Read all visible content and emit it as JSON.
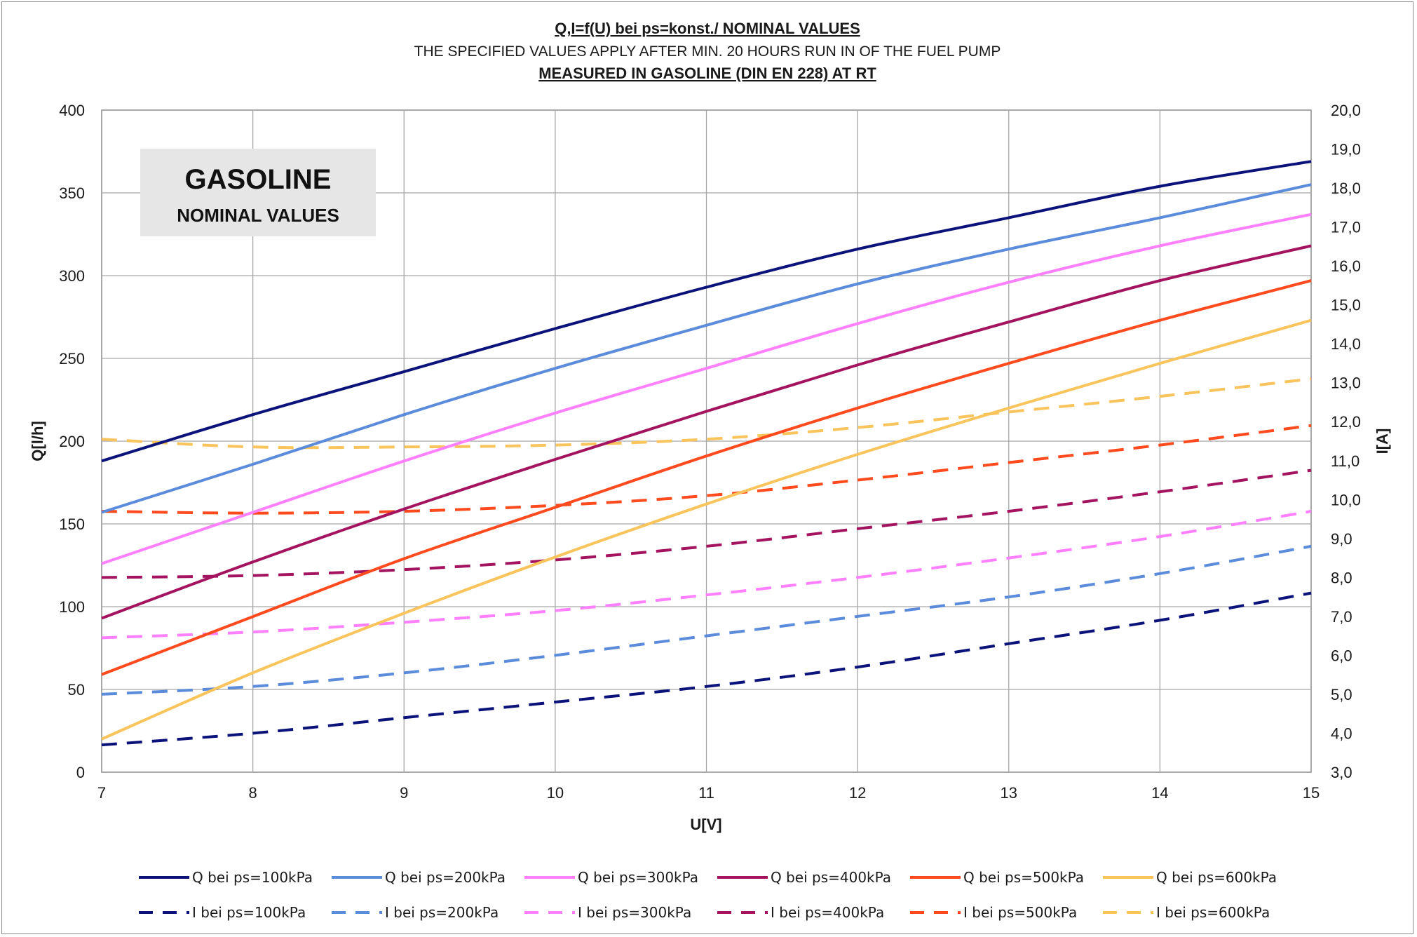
{
  "chart_data": {
    "type": "line",
    "title": "Q,I=f(U) bei ps=konst./  NOMINAL VALUES",
    "subtitle": "THE SPECIFIED VALUES APPLY AFTER MIN. 20 HOURS RUN IN OF THE FUEL PUMP",
    "subtitle2": "MEASURED IN GASOLINE (DIN EN 228) AT RT",
    "badge": {
      "line1": "GASOLINE",
      "line2": "NOMINAL VALUES"
    },
    "xlabel": "U[V]",
    "ylabel": "Q[l/h]",
    "y2label": "I[A]",
    "xlim": [
      7,
      15
    ],
    "ylim": [
      0,
      400
    ],
    "y2lim": [
      3,
      20
    ],
    "x_ticks": [
      "7",
      "8",
      "9",
      "10",
      "11",
      "12",
      "13",
      "14",
      "15"
    ],
    "y_ticks": [
      "0",
      "50",
      "100",
      "150",
      "200",
      "250",
      "300",
      "350",
      "400"
    ],
    "y2_ticks": [
      "3,0",
      "4,0",
      "5,0",
      "6,0",
      "7,0",
      "8,0",
      "9,0",
      "10,0",
      "11,0",
      "12,0",
      "13,0",
      "14,0",
      "15,0",
      "16,0",
      "17,0",
      "18,0",
      "19,0",
      "20,0"
    ],
    "grid": true,
    "legend_position": "bottom",
    "x": [
      7,
      8,
      9,
      10,
      11,
      12,
      13,
      14,
      15
    ],
    "series": [
      {
        "name": "Q  bei ps=100kPa",
        "axis": "left",
        "dash": false,
        "color": "#0b137a",
        "values": [
          188,
          216,
          242,
          268,
          293,
          316,
          335,
          354,
          369
        ]
      },
      {
        "name": "Q  bei ps=200kPa",
        "axis": "left",
        "dash": false,
        "color": "#5b8bdb",
        "values": [
          157,
          186,
          216,
          244,
          270,
          295,
          316,
          335,
          355
        ]
      },
      {
        "name": "Q  bei ps=300kPa",
        "axis": "left",
        "dash": false,
        "color": "#ff80ff",
        "values": [
          126,
          157,
          188,
          217,
          244,
          271,
          296,
          318,
          337
        ]
      },
      {
        "name": "Q  bei ps=400kPa",
        "axis": "left",
        "dash": false,
        "color": "#a3135f",
        "values": [
          93,
          127,
          159,
          189,
          218,
          246,
          272,
          297,
          318
        ]
      },
      {
        "name": "Q  bei ps=500kPa",
        "axis": "left",
        "dash": false,
        "color": "#ff4a1e",
        "values": [
          59,
          94,
          129,
          160,
          191,
          220,
          247,
          273,
          297
        ]
      },
      {
        "name": "Q  bei ps=600kPa",
        "axis": "left",
        "dash": false,
        "color": "#f9c45c",
        "values": [
          20,
          60,
          96,
          130,
          162,
          192,
          220,
          247,
          273
        ]
      },
      {
        "name": "I  bei ps=100kPa",
        "axis": "right",
        "dash": true,
        "color": "#0b137a",
        "values": [
          3.7,
          4.0,
          4.4,
          4.8,
          5.2,
          5.7,
          6.3,
          6.9,
          7.6
        ]
      },
      {
        "name": "I  bei ps=200kPa",
        "axis": "right",
        "dash": true,
        "color": "#5b8bdb",
        "values": [
          5.0,
          5.2,
          5.55,
          6.0,
          6.5,
          7.0,
          7.5,
          8.1,
          8.8
        ]
      },
      {
        "name": "I  bei ps=300kPa",
        "axis": "right",
        "dash": true,
        "color": "#ff80ff",
        "values": [
          6.45,
          6.6,
          6.85,
          7.15,
          7.55,
          8.0,
          8.5,
          9.05,
          9.7
        ]
      },
      {
        "name": "I  bei ps=400kPa",
        "axis": "right",
        "dash": true,
        "color": "#a3135f",
        "values": [
          8.0,
          8.05,
          8.2,
          8.45,
          8.8,
          9.25,
          9.7,
          10.2,
          10.75
        ]
      },
      {
        "name": "I  bei ps=500kPa",
        "axis": "right",
        "dash": true,
        "color": "#ff4a1e",
        "values": [
          9.7,
          9.65,
          9.7,
          9.85,
          10.1,
          10.5,
          10.95,
          11.4,
          11.9
        ]
      },
      {
        "name": "I  bei ps=600kPa",
        "axis": "right",
        "dash": true,
        "color": "#f9c45c",
        "values": [
          11.55,
          11.35,
          11.35,
          11.4,
          11.55,
          11.85,
          12.25,
          12.65,
          13.1
        ]
      }
    ]
  }
}
